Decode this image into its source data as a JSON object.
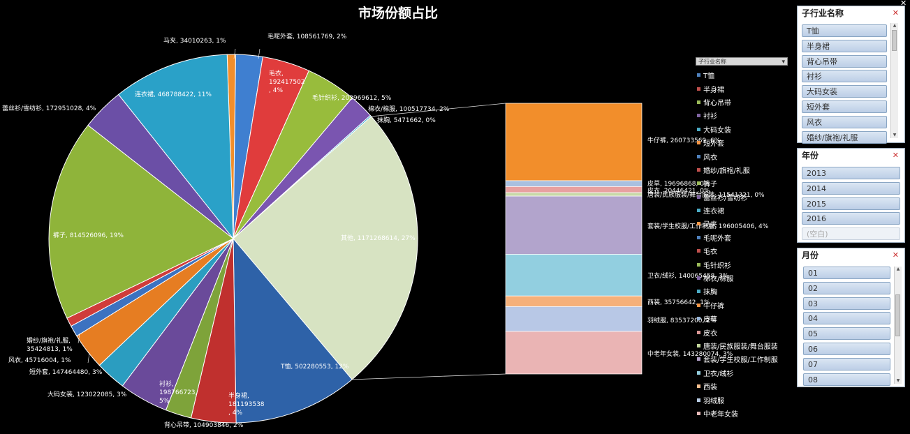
{
  "chart_data": {
    "type": "pie",
    "title": "市场份额占比",
    "slices": [
      {
        "label": "马夹, 34010263, 1%",
        "value": 34010263,
        "color": "#f28e2b"
      },
      {
        "label": "毛呢外套, 108561769, 2%",
        "value": 108561769,
        "color": "#3f7fd0"
      },
      {
        "label": "毛衣, 192417502, 4%",
        "value": 192417502,
        "color": "#e03c3c"
      },
      {
        "label": "毛针织衫, 203969612, 5%",
        "value": 203969612,
        "color": "#98bc3c"
      },
      {
        "label": "棉衣/棉服, 100517734, 2%",
        "value": 100517734,
        "color": "#7a55b0"
      },
      {
        "label": "抹胸, 5471662, 0%",
        "value": 5471662,
        "color": "#2ba6cf"
      },
      {
        "label": "其他, 1171268614, 27%",
        "value": 1171268614,
        "color": "#d7e3c2"
      },
      {
        "label": "T恤, 502280553, 12%",
        "value": 502280553,
        "color": "#2e62a8"
      },
      {
        "label": "半身裙, 181193538, 4%",
        "value": 181193538,
        "color": "#c0302e"
      },
      {
        "label": "背心吊带, 104903846, 2%",
        "value": 104903846,
        "color": "#7ea33a"
      },
      {
        "label": "衬衫, 198766723, 5%",
        "value": 198766723,
        "color": "#6a4a9a"
      },
      {
        "label": "大码女装, 123022085, 3%",
        "value": 123022085,
        "color": "#2b9dc0"
      },
      {
        "label": "短外套, 147464480, 3%",
        "value": 147464480,
        "color": "#e67d22"
      },
      {
        "label": "风衣, 45716004, 1%",
        "value": 45716004,
        "color": "#3c72c0"
      },
      {
        "label": "婚纱/旗袍/礼服, 35424813, 1%",
        "value": 35424813,
        "color": "#d03c3a"
      },
      {
        "label": "裤子, 814526096, 19%",
        "value": 814526096,
        "color": "#8fb43a"
      },
      {
        "label": "蕾丝衫/雪纺衫, 172951028, 4%",
        "value": 172951028,
        "color": "#6b4fa6"
      },
      {
        "label": "连衣裙, 468788422, 11%",
        "value": 468788422,
        "color": "#2aa1c8"
      }
    ],
    "bar_of_pie": [
      {
        "label": "牛仔裤, 260733569, 6%",
        "value": 260733569,
        "color": "#f28e2b"
      },
      {
        "label": "皮草, 19696868, 0%",
        "value": 19696868,
        "color": "#a9c0e0"
      },
      {
        "label": "皮衣, 20446421, 0%",
        "value": 20446421,
        "color": "#e8a0a0"
      },
      {
        "label": "唐装/民族服装/舞台服装, 11541321, 0%",
        "value": 11541321,
        "color": "#c8d8a8"
      },
      {
        "label": "套装/学生校服/工作制服, 196005406, 4%",
        "value": 196005406,
        "color": "#b2a4cc"
      },
      {
        "label": "卫衣/绒衫, 140065458, 3%",
        "value": 140065458,
        "color": "#92cfe0"
      },
      {
        "label": "西装, 35756642, 1%",
        "value": 35756642,
        "color": "#f5b07a"
      },
      {
        "label": "羽绒服, 83537200, 2%",
        "value": 83537200,
        "color": "#b8c8e6"
      },
      {
        "label": "中老年女装, 143280074, 3%",
        "value": 143280074,
        "color": "#eab4b4"
      }
    ],
    "legend_title": "子行业名称",
    "legend": [
      {
        "name": "T恤",
        "color": "#4f81bd"
      },
      {
        "name": "半身裙",
        "color": "#c0504d"
      },
      {
        "name": "背心吊带",
        "color": "#9bbb59"
      },
      {
        "name": "衬衫",
        "color": "#8064a2"
      },
      {
        "name": "大码女装",
        "color": "#4bacc6"
      },
      {
        "name": "短外套",
        "color": "#f79646"
      },
      {
        "name": "风衣",
        "color": "#4f81bd"
      },
      {
        "name": "婚纱/旗袍/礼服",
        "color": "#c0504d"
      },
      {
        "name": "裤子",
        "color": "#9bbb59"
      },
      {
        "name": "蕾丝衫/雪纺衫",
        "color": "#8064a2"
      },
      {
        "name": "连衣裙",
        "color": "#4bacc6"
      },
      {
        "name": "马夹",
        "color": "#f79646"
      },
      {
        "name": "毛呢外套",
        "color": "#4f81bd"
      },
      {
        "name": "毛衣",
        "color": "#c0504d"
      },
      {
        "name": "毛针织衫",
        "color": "#9bbb59"
      },
      {
        "name": "棉衣/棉服",
        "color": "#8064a2"
      },
      {
        "name": "抹胸",
        "color": "#4bacc6"
      },
      {
        "name": "牛仔裤",
        "color": "#f79646"
      },
      {
        "name": "皮草",
        "color": "#95b3d7"
      },
      {
        "name": "皮衣",
        "color": "#d99694"
      },
      {
        "name": "唐装/民族服装/舞台服装",
        "color": "#c3d69b"
      },
      {
        "name": "套装/学生校服/工作制服",
        "color": "#b2a1c7"
      },
      {
        "name": "卫衣/绒衫",
        "color": "#93cddd"
      },
      {
        "name": "西装",
        "color": "#fac090"
      },
      {
        "name": "羽绒服",
        "color": "#b9cde5"
      },
      {
        "name": "中老年女装",
        "color": "#e6b9b8"
      }
    ]
  },
  "slicers": {
    "industry": {
      "title": "子行业名称",
      "items": [
        "T恤",
        "半身裙",
        "背心吊带",
        "衬衫",
        "大码女装",
        "短外套",
        "风衣",
        "婚纱/旗袍/礼服"
      ]
    },
    "year": {
      "title": "年份",
      "items": [
        "2013",
        "2014",
        "2015",
        "2016"
      ],
      "empty_item": "(空白)"
    },
    "month": {
      "title": "月份",
      "items": [
        "01",
        "02",
        "03",
        "04",
        "05",
        "06",
        "07",
        "08"
      ]
    }
  }
}
